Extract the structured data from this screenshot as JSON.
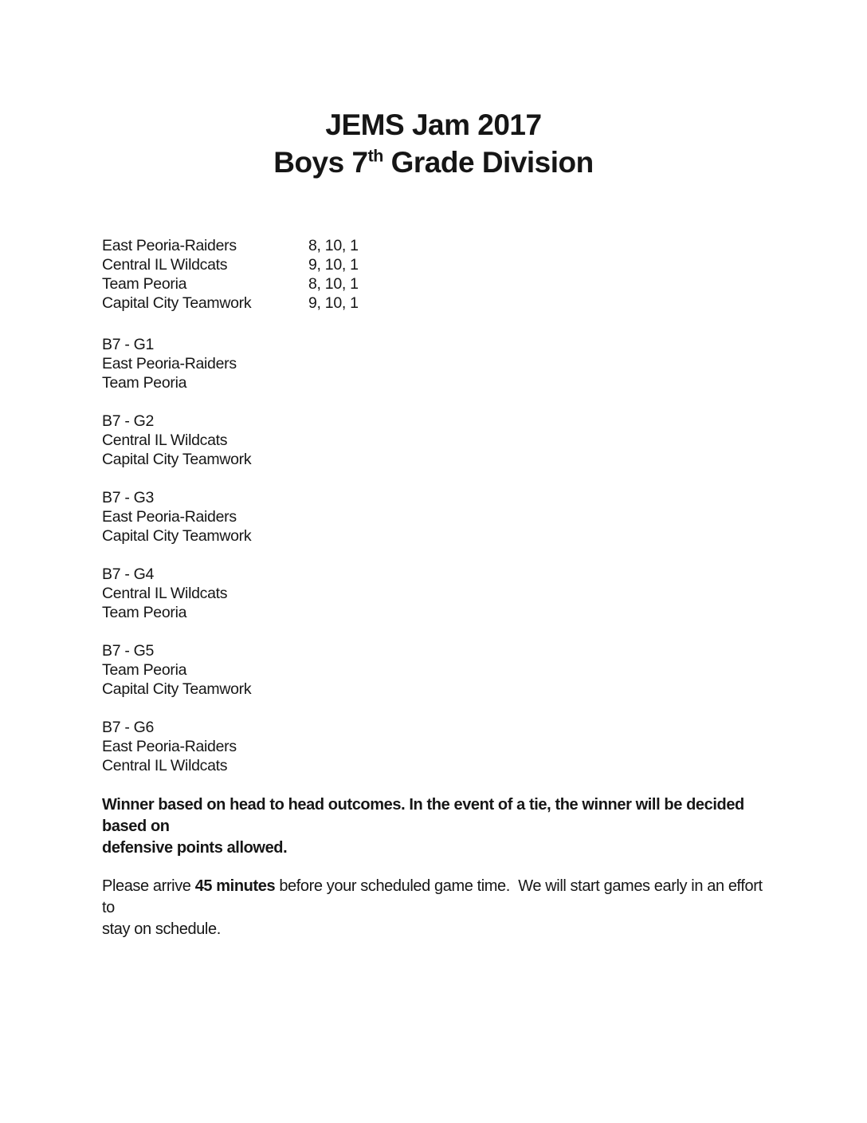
{
  "title": {
    "line1": "JEMS Jam 2017",
    "line2_pre": "Boys 7",
    "line2_sup": "th",
    "line2_post": " Grade Division"
  },
  "standings": [
    {
      "team": "East Peoria-Raiders",
      "times": "8, 10, 1"
    },
    {
      "team": "Central IL Wildcats",
      "times": "9, 10, 1"
    },
    {
      "team": "Team Peoria",
      "times": "8, 10, 1"
    },
    {
      "team": "Capital City Teamwork",
      "times": "9, 10, 1"
    }
  ],
  "games": [
    {
      "label": "B7 - G1",
      "team_a": "East Peoria-Raiders",
      "team_b": "Team Peoria"
    },
    {
      "label": "B7 - G2",
      "team_a": "Central IL Wildcats",
      "team_b": "Capital City Teamwork"
    },
    {
      "label": "B7 - G3",
      "team_a": "East Peoria-Raiders",
      "team_b": "Capital City Teamwork"
    },
    {
      "label": "B7 - G4",
      "team_a": "Central IL Wildcats",
      "team_b": "Team Peoria"
    },
    {
      "label": "B7 - G5",
      "team_a": "Team Peoria",
      "team_b": "Capital City Teamwork"
    },
    {
      "label": "B7 - G6",
      "team_a": "East Peoria-Raiders",
      "team_b": "Central IL Wildcats"
    }
  ],
  "notes": {
    "tiebreaker_line1": "Winner based on head to head outcomes. In the event of a tie, the winner will be decided based on",
    "tiebreaker_line2": "defensive points allowed.",
    "arrival_pre": "Please arrive ",
    "arrival_bold": "45 minutes",
    "arrival_post_line1": " before your scheduled game time.  We will start games early in an effort to",
    "arrival_line2": "stay on schedule."
  }
}
